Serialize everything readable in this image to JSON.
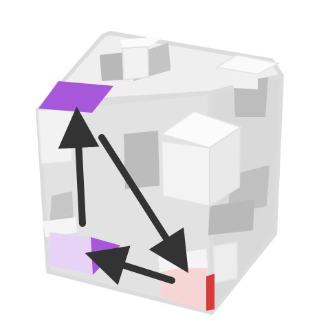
{
  "puzzle": {
    "colors": {
      "frame_edge": "#dcdcdc",
      "frame_fill": "#d6d6d6",
      "cube_face": "#f4f4f4",
      "cube_shadow": "#b3b3b3",
      "accent_purple": "#a757d9",
      "accent_purple_light": "#e7d3f5",
      "accent_red": "#d83a3a",
      "accent_red_light": "#f7d5d5",
      "arrow": "#333333"
    },
    "tiles": [
      {
        "name": "purple-top-corner-tile",
        "color": "#a757d9"
      },
      {
        "name": "purple-bottom-left-tile",
        "color": "#e7d3f5"
      },
      {
        "name": "purple-triangle-tile",
        "color": "#a757d9"
      },
      {
        "name": "red-bottom-right-tile",
        "color": "#f7d5d5"
      }
    ],
    "moves": [
      {
        "name": "arrow-top-to-bottom-right",
        "from": "top-left-corner",
        "to": "bottom-right-corner"
      },
      {
        "name": "arrow-bottom-right-to-bottom-left",
        "from": "bottom-right-corner",
        "to": "bottom-left-corner"
      },
      {
        "name": "arrow-bottom-left-to-top",
        "from": "bottom-left-corner",
        "to": "top-left-corner"
      }
    ]
  }
}
